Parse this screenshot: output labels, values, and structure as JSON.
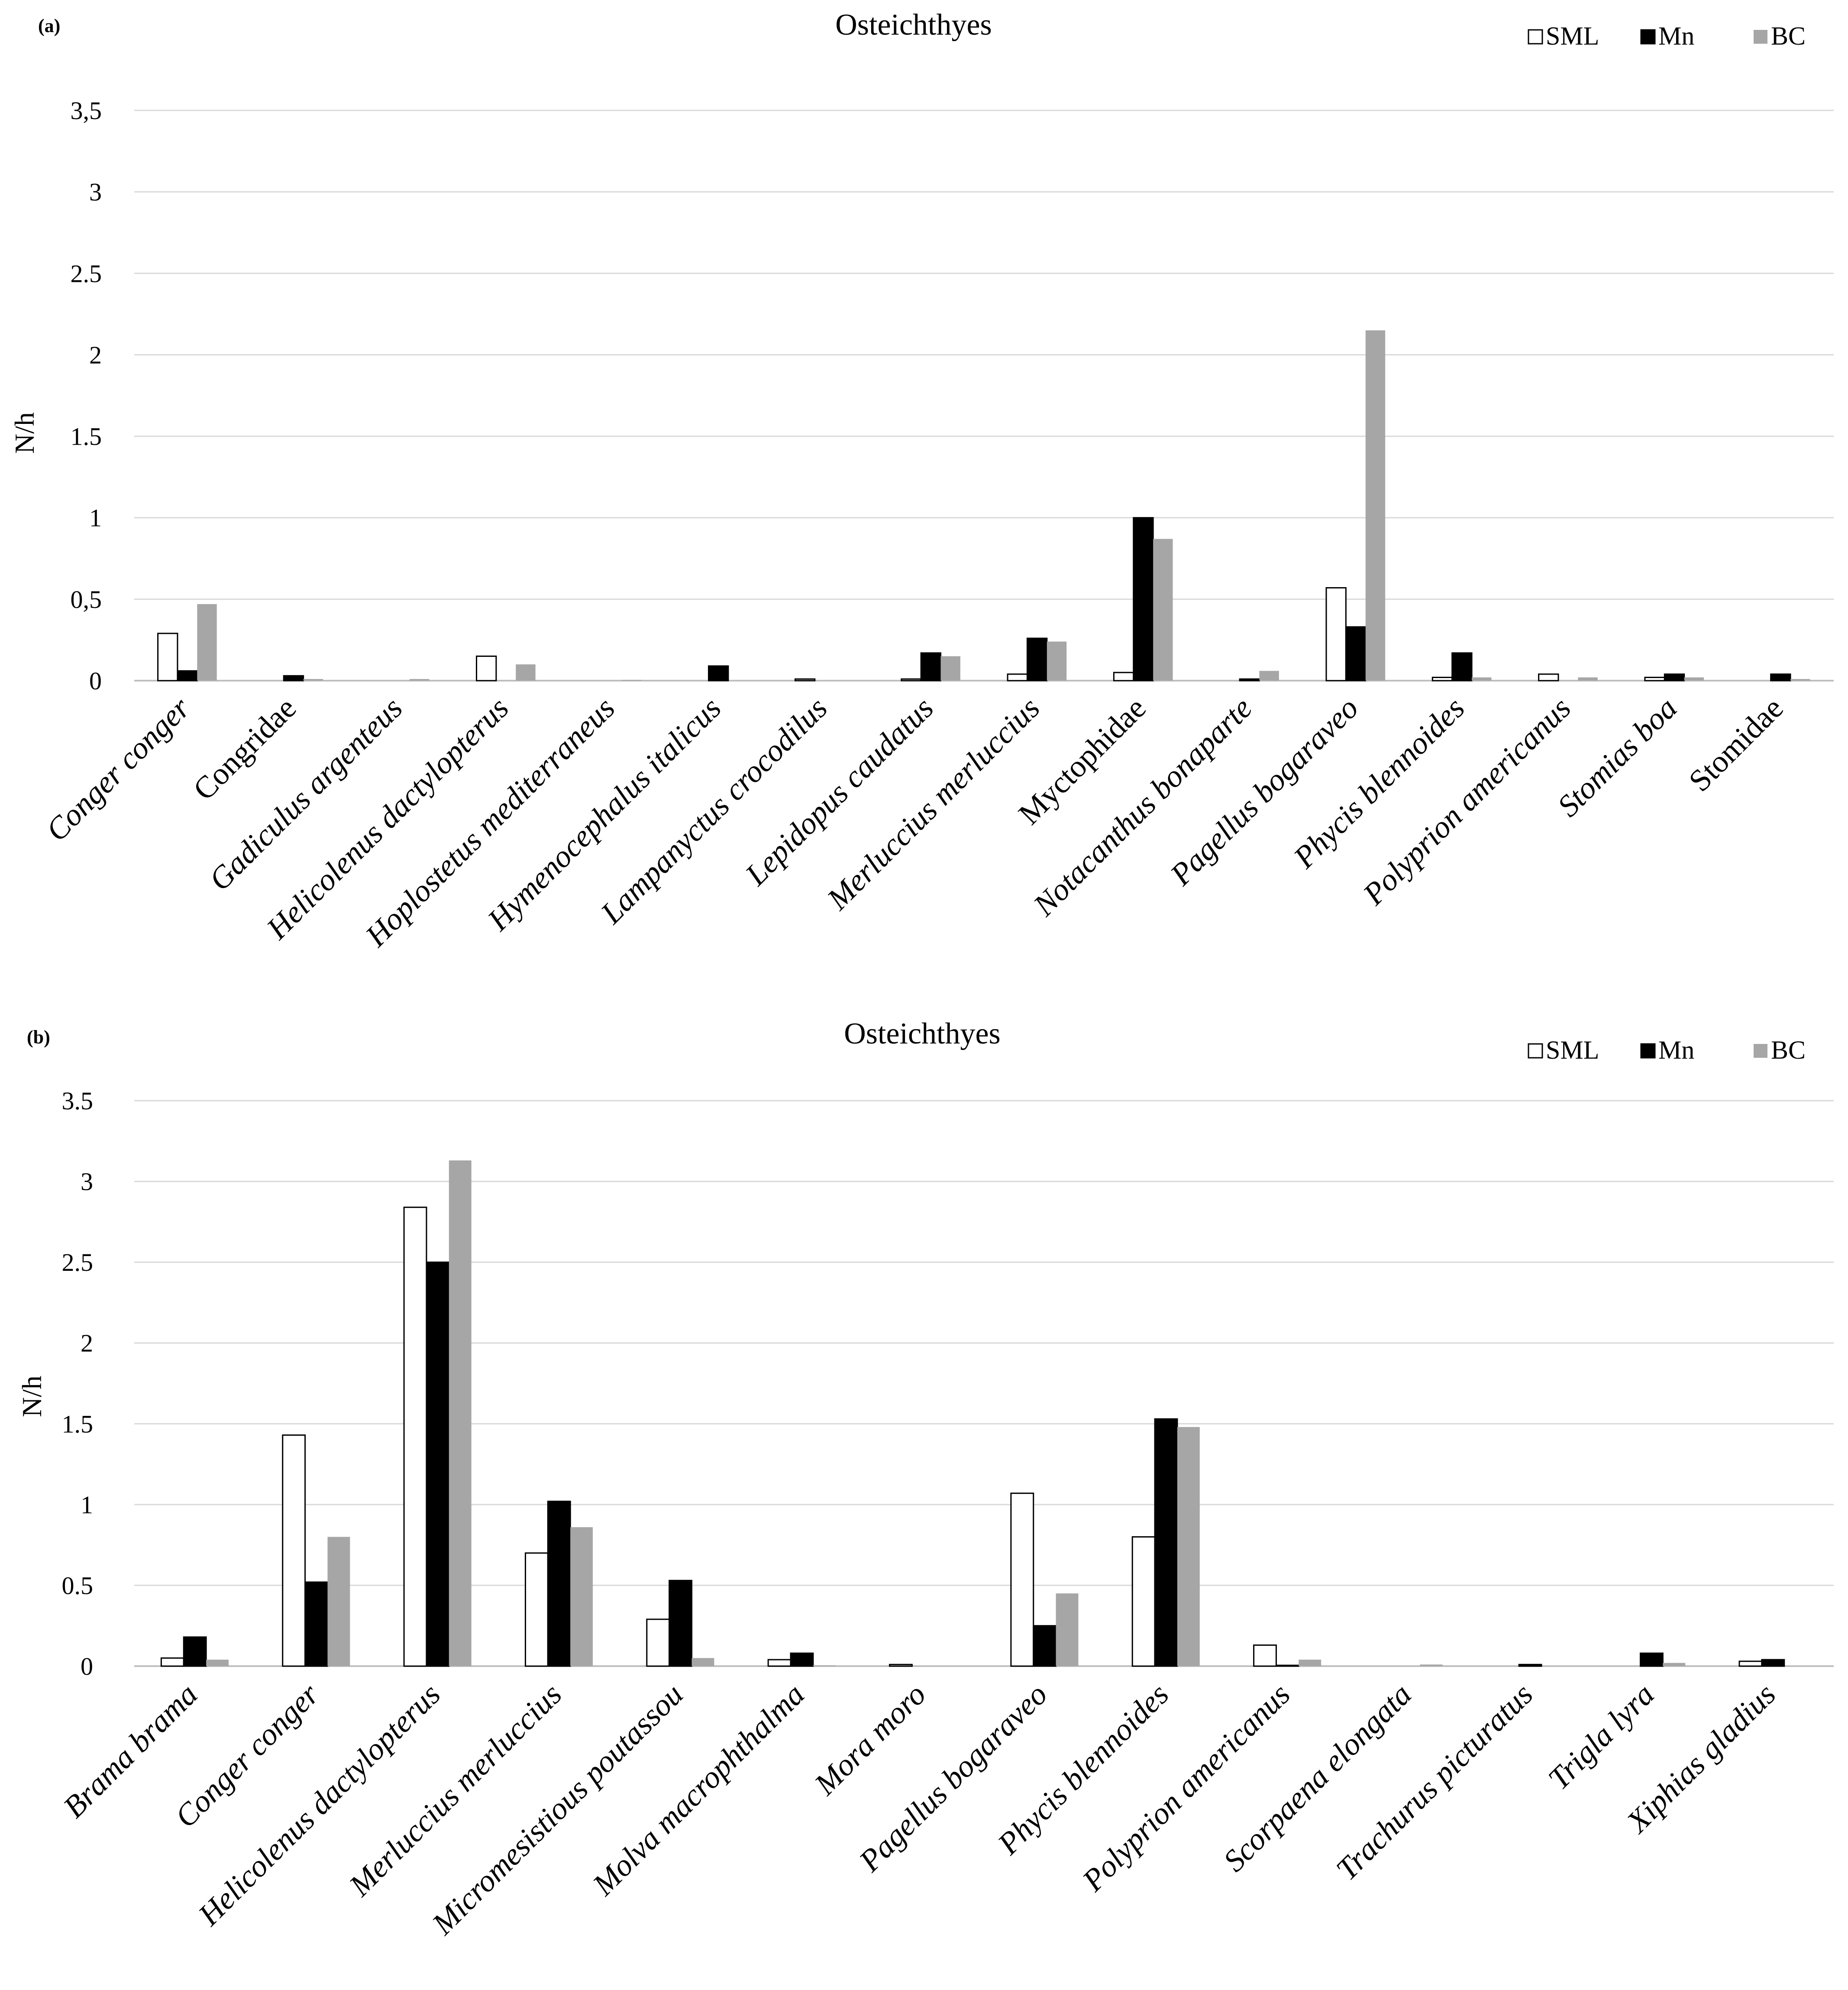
{
  "chart_data": [
    {
      "type": "bar",
      "panel_label": "(a)",
      "title": "Osteichthyes",
      "xlabel": "",
      "ylabel": "N/h",
      "ylim": [
        0,
        3.5
      ],
      "yticks": [
        "0",
        "0,5",
        "1",
        "1.5",
        "2",
        "2.5",
        "3",
        "3,5"
      ],
      "grid": true,
      "legend_position": "top-right",
      "categories": [
        "Conger conger",
        "Congridae",
        "Gadiculus argenteus",
        "Helicolenus dactylopterus",
        "Hoplostetus mediterraneus",
        "Hymenocephalus italicus",
        "Lampanyctus crocodilus",
        "Lepidopus caudatus",
        "Merluccius merluccius",
        "Myctophidae",
        "Notacanthus bonaparte",
        "Pagellus bogaraveo",
        "Phycis blennoides",
        "Polyprion americanus",
        "Stomias boa",
        "Stomidae"
      ],
      "upright_categories": [
        "Congridae",
        "Myctophidae",
        "Stomidae"
      ],
      "series": [
        {
          "name": "SML",
          "color": "#ffffff",
          "values": [
            0.29,
            0,
            0,
            0.15,
            0,
            0,
            0.01,
            0.01,
            0.04,
            0.05,
            0,
            0.57,
            0.02,
            0.04,
            0.02,
            0
          ]
        },
        {
          "name": "Mn",
          "color": "#000000",
          "values": [
            0.06,
            0.03,
            0,
            0,
            0,
            0.09,
            0,
            0.17,
            0.26,
            1.0,
            0.01,
            0.33,
            0.17,
            0,
            0.04,
            0.04
          ]
        },
        {
          "name": "BC",
          "color": "#a6a6a6",
          "values": [
            0.47,
            0.01,
            0.01,
            0.1,
            0.005,
            0,
            0,
            0.15,
            0.24,
            0.87,
            0.06,
            2.15,
            0.02,
            0.02,
            0.02,
            0.01
          ]
        }
      ]
    },
    {
      "type": "bar",
      "panel_label": "(b)",
      "title": "Osteichthyes",
      "xlabel": "",
      "ylabel": "N/h",
      "ylim": [
        0,
        3.5
      ],
      "yticks": [
        "0",
        "0.5",
        "1",
        "1.5",
        "2",
        "2.5",
        "3",
        "3.5"
      ],
      "grid": true,
      "legend_position": "top-right",
      "categories": [
        "Brama brama",
        "Conger conger",
        "Helicolenus dactylopterus",
        "Merluccius merluccius",
        "Micromesistious poutassou",
        "Molva macrophthalma",
        "Mora moro",
        "Pagellus bogaraveo",
        "Phycis blennoides",
        "Polyprion americanus",
        "Scorpaena elongata",
        "Trachurus picturatus",
        "Trigla lyra",
        "Xiphias gladius"
      ],
      "upright_categories": [],
      "series": [
        {
          "name": "SML",
          "color": "#ffffff",
          "values": [
            0.05,
            1.43,
            2.84,
            0.7,
            0.29,
            0.04,
            0.01,
            1.07,
            0.8,
            0.13,
            0,
            0,
            0,
            0.03
          ]
        },
        {
          "name": "Mn",
          "color": "#000000",
          "values": [
            0.18,
            0.52,
            2.5,
            1.02,
            0.53,
            0.08,
            0,
            0.25,
            1.53,
            0.005,
            0,
            0.01,
            0.08,
            0.04
          ]
        },
        {
          "name": "BC",
          "color": "#a6a6a6",
          "values": [
            0.04,
            0.8,
            3.13,
            0.86,
            0.05,
            0.005,
            0,
            0.45,
            1.48,
            0.04,
            0.01,
            0,
            0.02,
            0
          ]
        }
      ]
    }
  ]
}
